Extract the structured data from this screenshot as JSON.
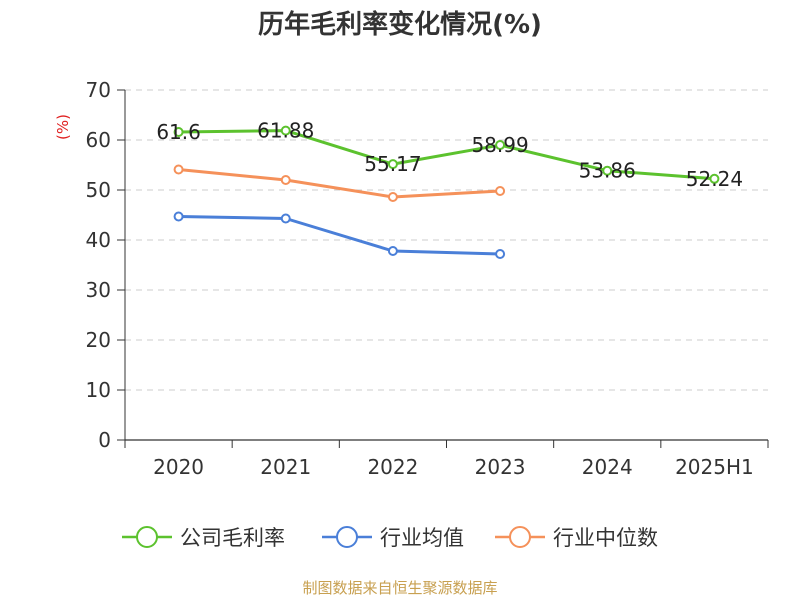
{
  "chart_data": {
    "type": "line",
    "title": "历年毛利率变化情况(%)",
    "ylabel": "(%)",
    "categories": [
      "2020",
      "2021",
      "2022",
      "2023",
      "2024",
      "2025H1"
    ],
    "ylim": [
      0,
      70
    ],
    "yticks": [
      0,
      10,
      20,
      30,
      40,
      50,
      60,
      70
    ],
    "grid": true,
    "legend_position": "bottom",
    "series": [
      {
        "name": "公司毛利率",
        "color": "#5cc22e",
        "values": [
          61.6,
          61.88,
          55.17,
          58.99,
          53.86,
          52.24
        ],
        "labels": [
          "61.6",
          "61.88",
          "55.17",
          "58.99",
          "53.86",
          "52.24"
        ]
      },
      {
        "name": "行业均值",
        "color": "#4a7fd8",
        "values": [
          44.7,
          44.3,
          37.8,
          37.2,
          null,
          null
        ]
      },
      {
        "name": "行业中位数",
        "color": "#f5915a",
        "values": [
          54.1,
          52.0,
          48.6,
          49.8,
          null,
          null
        ]
      }
    ]
  },
  "source": "制图数据来自恒生聚源数据库"
}
